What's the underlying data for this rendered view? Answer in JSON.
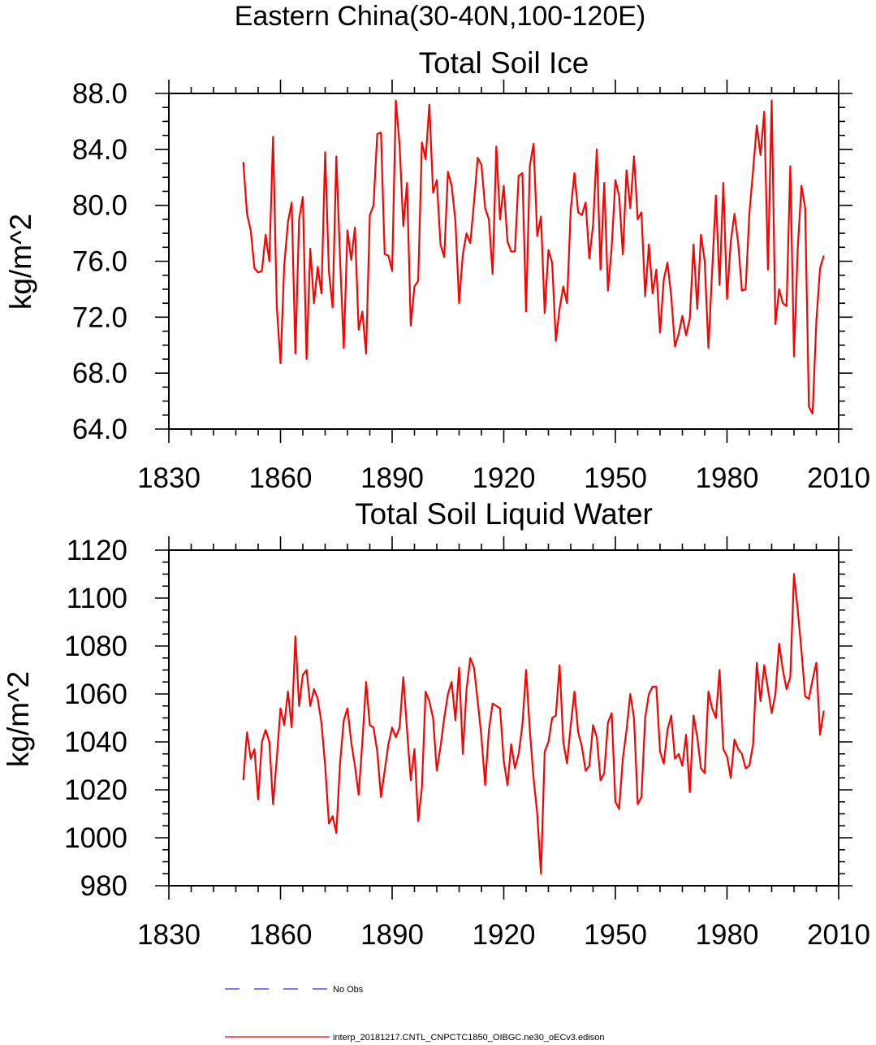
{
  "figure": {
    "title": "Eastern China(30-40N,100-120E)",
    "legend": {
      "entries": [
        {
          "label": "No Obs",
          "color": "#2a2aff",
          "style": "dashed"
        },
        {
          "label": "interp_20181217.CNTL_CNPCTC1850_OIBGC.ne30_oECv3.edison",
          "color": "#ff0000",
          "style": "solid"
        }
      ]
    }
  },
  "chart_data": [
    {
      "type": "line",
      "title": "Total Soil Ice",
      "xlabel": "",
      "ylabel": "kg/m^2",
      "xlim": [
        1830,
        2010
      ],
      "ylim": [
        64,
        88
      ],
      "xticks": [
        "1830",
        "1860",
        "1890",
        "1920",
        "1950",
        "1980",
        "2010"
      ],
      "yticks": [
        "64.0",
        "68.0",
        "72.0",
        "76.0",
        "80.0",
        "84.0",
        "88.0"
      ],
      "series": [
        {
          "name": "interp_20181217.CNTL_CNPCTC1850_OIBGC.ne30_oECv3.edison",
          "color": "#ff0000",
          "x_start": 1850,
          "x_step": 1,
          "values": [
            83.1,
            79.4,
            78.2,
            75.5,
            75.2,
            75.3,
            77.9,
            76.0,
            84.9,
            72.8,
            68.7,
            75.7,
            78.8,
            80.2,
            69.4,
            79.0,
            80.6,
            69.0,
            76.9,
            73.0,
            75.6,
            73.7,
            83.8,
            75.3,
            72.7,
            83.5,
            76.2,
            69.8,
            78.2,
            76.1,
            78.4,
            71.1,
            72.4,
            69.4,
            79.3,
            80.0,
            85.1,
            85.2,
            76.5,
            76.4,
            75.3,
            87.5,
            84.3,
            78.5,
            81.6,
            71.4,
            74.2,
            74.6,
            84.5,
            83.3,
            87.2,
            80.9,
            81.8,
            77.2,
            76.3,
            82.4,
            81.4,
            78.9,
            73.0,
            76.5,
            78.0,
            77.3,
            80.2,
            83.4,
            82.9,
            79.8,
            79.0,
            75.1,
            84.2,
            79.0,
            81.4,
            77.4,
            76.7,
            76.7,
            82.1,
            82.3,
            72.4,
            82.8,
            84.4,
            77.8,
            79.2,
            72.3,
            76.8,
            75.9,
            70.3,
            72.6,
            74.2,
            73.0,
            79.7,
            82.3,
            79.5,
            79.3,
            80.2,
            76.2,
            78.6,
            84.0,
            75.4,
            81.6,
            73.9,
            77.0,
            81.8,
            80.7,
            76.5,
            82.5,
            79.8,
            83.5,
            79.0,
            79.5,
            73.5,
            77.2,
            73.7,
            75.4,
            70.9,
            74.7,
            75.9,
            73.5,
            69.9,
            70.8,
            72.1,
            70.7,
            71.9,
            77.2,
            72.6,
            77.9,
            76.0,
            69.8,
            75.3,
            80.7,
            74.3,
            81.6,
            73.3,
            77.4,
            79.4,
            77.3,
            73.9,
            74.0,
            79.4,
            82.5,
            85.7,
            83.6,
            86.7,
            75.4,
            87.5,
            71.5,
            74.0,
            73.0,
            72.8,
            82.8,
            69.2,
            76.9,
            81.4,
            79.8,
            65.6,
            65.1,
            71.7,
            75.5,
            76.4
          ]
        }
      ]
    },
    {
      "type": "line",
      "title": "Total Soil Liquid Water",
      "xlabel": "",
      "ylabel": "kg/m^2",
      "xlim": [
        1830,
        2010
      ],
      "ylim": [
        980,
        1120
      ],
      "xticks": [
        "1830",
        "1860",
        "1890",
        "1920",
        "1950",
        "1980",
        "2010"
      ],
      "yticks": [
        "980",
        "1000",
        "1020",
        "1040",
        "1060",
        "1080",
        "1100",
        "1120"
      ],
      "series": [
        {
          "name": "interp_20181217.CNTL_CNPCTC1850_OIBGC.ne30_oECv3.edison",
          "color": "#ff0000",
          "x_start": 1850,
          "x_step": 1,
          "values": [
            1024,
            1044,
            1033,
            1037,
            1016,
            1040,
            1045,
            1040,
            1014,
            1033,
            1054,
            1047,
            1061,
            1046,
            1084,
            1055,
            1068,
            1070,
            1055,
            1062,
            1058,
            1048,
            1030,
            1006,
            1009,
            1002,
            1031,
            1049,
            1054,
            1040,
            1030,
            1018,
            1040,
            1065,
            1047,
            1046,
            1036,
            1017,
            1028,
            1039,
            1046,
            1042,
            1046,
            1067,
            1045,
            1024,
            1037,
            1007,
            1021,
            1061,
            1057,
            1050,
            1028,
            1038,
            1050,
            1060,
            1065,
            1049,
            1071,
            1035,
            1062,
            1075,
            1071,
            1057,
            1042,
            1022,
            1045,
            1056,
            1055,
            1054,
            1032,
            1022,
            1039,
            1029,
            1035,
            1047,
            1070,
            1045,
            1025,
            1010,
            985,
            1036,
            1040,
            1050,
            1051,
            1072,
            1040,
            1031,
            1047,
            1061,
            1044,
            1038,
            1028,
            1030,
            1047,
            1042,
            1024,
            1027,
            1048,
            1052,
            1015,
            1012,
            1033,
            1045,
            1060,
            1050,
            1014,
            1017,
            1050,
            1060,
            1063,
            1063,
            1036,
            1031,
            1045,
            1051,
            1033,
            1035,
            1030,
            1043,
            1019,
            1051,
            1042,
            1029,
            1027,
            1061,
            1054,
            1050,
            1070,
            1037,
            1034,
            1025,
            1041,
            1037,
            1035,
            1029,
            1030,
            1039,
            1073,
            1057,
            1072,
            1062,
            1052,
            1060,
            1081,
            1070,
            1062,
            1067,
            1110,
            1095,
            1078,
            1059,
            1058,
            1066,
            1073,
            1043,
            1053
          ]
        }
      ]
    }
  ]
}
